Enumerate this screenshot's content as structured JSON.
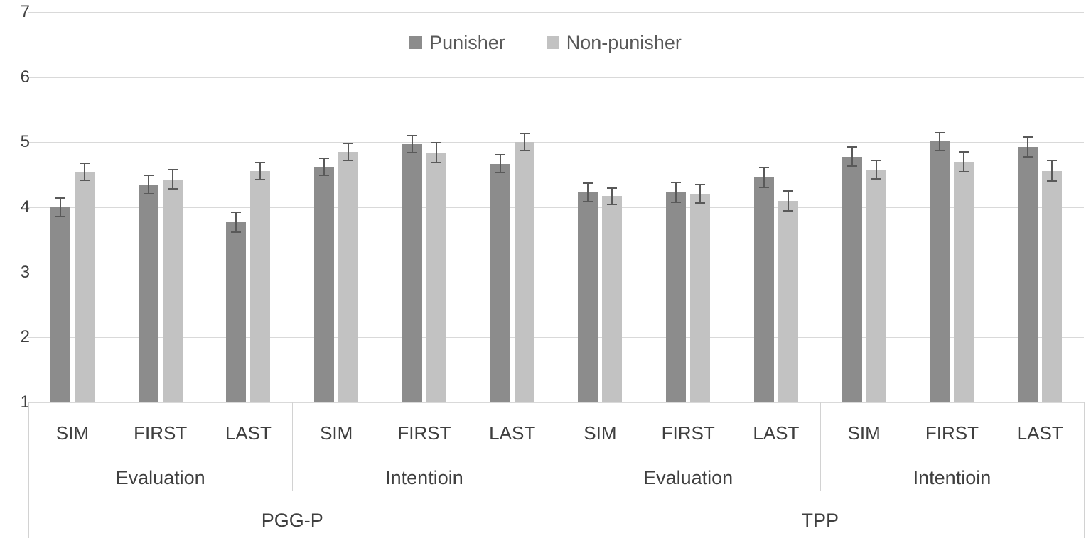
{
  "colors": {
    "punisher": "#8c8c8c",
    "non_punisher": "#c2c2c2",
    "error_bar": "#595959",
    "gridline": "#d9d9d9",
    "divider": "#d2d2d2",
    "axis_text": "#404040",
    "legend_text": "#595959"
  },
  "chart_data": {
    "type": "bar",
    "ylim": [
      1,
      7
    ],
    "yticks": [
      1,
      2,
      3,
      4,
      5,
      6,
      7
    ],
    "grid": true,
    "legend_position": "top-center",
    "x_axis": {
      "level1": [
        "SIM",
        "FIRST",
        "LAST",
        "SIM",
        "FIRST",
        "LAST",
        "SIM",
        "FIRST",
        "LAST",
        "SIM",
        "FIRST",
        "LAST"
      ],
      "level2": [
        "Evaluation",
        "Intentioin",
        "Evaluation",
        "Intentioin"
      ],
      "level3": [
        "PGG-P",
        "TPP"
      ]
    },
    "series": [
      {
        "name": "Punisher",
        "values": [
          4.0,
          4.35,
          3.77,
          4.62,
          4.97,
          4.67,
          4.23,
          4.23,
          4.46,
          4.78,
          5.01,
          4.93
        ],
        "errors": [
          0.14,
          0.14,
          0.15,
          0.13,
          0.13,
          0.14,
          0.14,
          0.15,
          0.15,
          0.15,
          0.14,
          0.15
        ]
      },
      {
        "name": "Non-punisher",
        "values": [
          4.55,
          4.43,
          4.56,
          4.85,
          4.84,
          5.0,
          4.17,
          4.21,
          4.1,
          4.58,
          4.7,
          4.56
        ],
        "errors": [
          0.13,
          0.15,
          0.13,
          0.13,
          0.15,
          0.13,
          0.13,
          0.14,
          0.15,
          0.14,
          0.15,
          0.16
        ]
      }
    ]
  }
}
